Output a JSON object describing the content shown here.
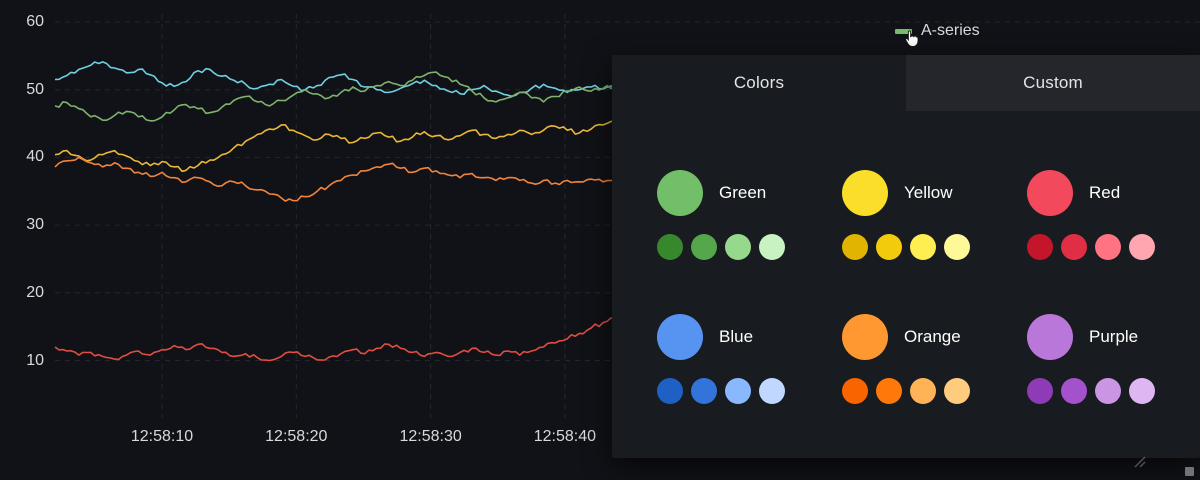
{
  "legend": {
    "label": "A-series",
    "swatch_color": "#73BF69"
  },
  "chart_data": {
    "type": "line",
    "title": "",
    "x_tick_labels": [
      "12:58:10",
      "12:58:20",
      "12:58:30",
      "12:58:40"
    ],
    "y_ticks": [
      60,
      50,
      40,
      30,
      20,
      10
    ],
    "ylim": [
      8,
      62
    ],
    "grid": true,
    "legend_position": "top-right",
    "series": [
      {
        "id": "cyan-series",
        "color": "#6ED0E0",
        "values": [
          51.5,
          52.1,
          53.0,
          53.6,
          54.1,
          53.2,
          52.5,
          53.0,
          52.2,
          51.0,
          50.5,
          51.2,
          52.8,
          53.0,
          52.0,
          51.4,
          50.8,
          50.2,
          50.8,
          51.5,
          50.5,
          50.0,
          50.6,
          51.8,
          52.2,
          51.5,
          50.4,
          50.0,
          49.6,
          50.2,
          50.9,
          51.4,
          50.6,
          49.8,
          49.4,
          50.0,
          50.6,
          49.8,
          49.2,
          49.6,
          50.2,
          50.8,
          50.2,
          49.6,
          50.0,
          50.4,
          50.1,
          50.6
        ]
      },
      {
        "id": "green-series",
        "color": "#7EB26D",
        "values": [
          47.6,
          48.1,
          47.2,
          46.0,
          45.5,
          46.2,
          46.8,
          46.0,
          45.4,
          46.0,
          47.0,
          47.8,
          47.2,
          46.6,
          47.4,
          48.4,
          49.0,
          48.2,
          47.6,
          48.4,
          49.2,
          50.0,
          49.4,
          48.8,
          49.6,
          50.4,
          49.8,
          50.6,
          51.2,
          50.6,
          51.4,
          52.1,
          52.6,
          51.8,
          50.8,
          49.8,
          48.8,
          48.2,
          48.8,
          49.6,
          48.8,
          48.2,
          49.0,
          49.8,
          50.4,
          49.8,
          50.2,
          50.6
        ]
      },
      {
        "id": "yellow-series",
        "color": "#EAB839",
        "values": [
          40.4,
          41.0,
          40.2,
          39.6,
          40.4,
          41.0,
          40.2,
          39.4,
          38.8,
          39.4,
          38.6,
          38.1,
          38.8,
          39.6,
          40.4,
          41.4,
          42.4,
          43.4,
          44.2,
          44.8,
          44.0,
          43.2,
          42.6,
          43.4,
          42.8,
          42.2,
          42.8,
          43.6,
          43.0,
          42.4,
          43.0,
          43.8,
          43.2,
          42.6,
          43.2,
          44.0,
          43.4,
          42.8,
          43.4,
          44.0,
          43.4,
          44.0,
          44.6,
          44.0,
          43.6,
          44.2,
          44.8,
          45.4
        ]
      },
      {
        "id": "orange-series",
        "color": "#EF843C",
        "values": [
          38.6,
          39.5,
          40.0,
          39.2,
          38.6,
          39.2,
          38.4,
          37.8,
          37.2,
          37.8,
          37.0,
          36.4,
          37.0,
          36.4,
          35.8,
          36.4,
          35.8,
          35.2,
          34.6,
          34.0,
          33.6,
          34.2,
          35.0,
          35.8,
          36.6,
          37.4,
          38.0,
          38.6,
          39.0,
          38.4,
          37.8,
          38.4,
          38.0,
          37.4,
          37.0,
          37.6,
          37.0,
          36.6,
          37.0,
          36.6,
          36.2,
          36.6,
          36.2,
          36.6,
          36.4,
          36.8,
          36.4,
          36.6
        ]
      },
      {
        "id": "red-series",
        "color": "#E24D42",
        "values": [
          12.0,
          11.4,
          10.8,
          11.2,
          10.6,
          10.2,
          10.8,
          11.4,
          10.8,
          11.6,
          12.2,
          11.6,
          12.4,
          11.8,
          11.2,
          10.6,
          11.0,
          10.4,
          10.0,
          10.6,
          11.2,
          10.6,
          10.1,
          10.5,
          11.0,
          11.6,
          11.0,
          11.8,
          12.4,
          11.8,
          11.2,
          10.6,
          11.2,
          10.6,
          11.2,
          11.8,
          11.2,
          10.8,
          11.4,
          10.8,
          11.4,
          12.0,
          12.6,
          13.2,
          14.0,
          14.8,
          15.6,
          16.2
        ]
      }
    ]
  },
  "color_picker": {
    "tabs": [
      {
        "label": "Colors",
        "active": true
      },
      {
        "label": "Custom",
        "active": false
      }
    ],
    "palettes": [
      {
        "name": "Green",
        "main": "#73BF69",
        "shades": [
          "#37872D",
          "#56A64B",
          "#96D98D",
          "#C8F2C2"
        ]
      },
      {
        "name": "Yellow",
        "main": "#FADE2A",
        "shades": [
          "#E0B400",
          "#F2CC0C",
          "#FFEE52",
          "#FFF899"
        ]
      },
      {
        "name": "Red",
        "main": "#F2495C",
        "shades": [
          "#C4162A",
          "#E02F44",
          "#FF7383",
          "#FFA6B0"
        ]
      },
      {
        "name": "Blue",
        "main": "#5794F2",
        "shades": [
          "#1F60C4",
          "#3274D9",
          "#8AB8FF",
          "#C0D8FF"
        ]
      },
      {
        "name": "Orange",
        "main": "#FF9830",
        "shades": [
          "#FA6400",
          "#FF780A",
          "#FFB357",
          "#FFCB7D"
        ]
      },
      {
        "name": "Purple",
        "main": "#B877D9",
        "shades": [
          "#8F3BB8",
          "#A352CC",
          "#CA95E5",
          "#DEB6F2"
        ]
      }
    ]
  }
}
